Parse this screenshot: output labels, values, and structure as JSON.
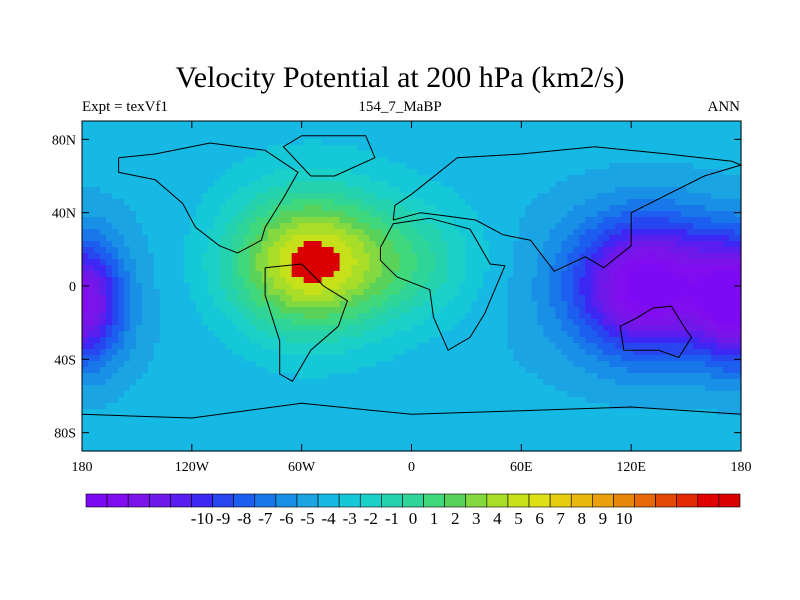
{
  "chart_data": {
    "type": "heatmap",
    "title": "Velocity Potential at 200 hPa (km2/s)",
    "subtitle_left": "Expt = texVf1",
    "subtitle_center": "154_7_MaBP",
    "subtitle_right": "ANN",
    "x_range": [
      -180,
      180
    ],
    "y_range": [
      -90,
      90
    ],
    "x_ticks": [
      {
        "value": -180,
        "label": "180"
      },
      {
        "value": -120,
        "label": "120W"
      },
      {
        "value": -60,
        "label": "60W"
      },
      {
        "value": 0,
        "label": "0"
      },
      {
        "value": 60,
        "label": "60E"
      },
      {
        "value": 120,
        "label": "120E"
      },
      {
        "value": 180,
        "label": "180"
      }
    ],
    "y_ticks": [
      {
        "value": 80,
        "label": "80N"
      },
      {
        "value": 40,
        "label": "40N"
      },
      {
        "value": 0,
        "label": "0"
      },
      {
        "value": -40,
        "label": "40S"
      },
      {
        "value": -80,
        "label": "80S"
      }
    ],
    "levels": [
      -10,
      -9,
      -8,
      -7,
      -6,
      -5,
      -4,
      -3,
      -2,
      -1,
      0,
      1,
      2,
      3,
      4,
      5,
      6,
      7,
      8,
      9,
      10
    ],
    "colorbar_labels": [
      "-10",
      "-9",
      "-8",
      "-7",
      "-6",
      "-5",
      "-4",
      "-3",
      "-2",
      "-1",
      "0",
      "1",
      "2",
      "3",
      "4",
      "5",
      "6",
      "7",
      "8",
      "9",
      "10"
    ],
    "field_centers": [
      {
        "name": "max",
        "lon": -55,
        "lat": 15,
        "value": 10.5
      },
      {
        "name": "min-pacific",
        "lon": 130,
        "lat": 0,
        "value": -10.5
      },
      {
        "name": "min-west-edge",
        "lon": -180,
        "lat": -10,
        "value": -9
      }
    ],
    "colors": [
      "#7d0af5",
      "#820cf0",
      "#7a14ea",
      "#6e18ea",
      "#5a1ef0",
      "#3c28f2",
      "#2846f0",
      "#1c5ef0",
      "#1878ea",
      "#1890e6",
      "#1aa4e4",
      "#16b8e4",
      "#14c8d8",
      "#1ad0c8",
      "#24d2b0",
      "#2ed498",
      "#40d87c",
      "#5ad25a",
      "#84d840",
      "#a8de28",
      "#c6e01a",
      "#dce014",
      "#e8cc10",
      "#e8b80e",
      "#e8a00c",
      "#e6860a",
      "#e66808",
      "#e44a06",
      "#e22a04",
      "#e00000",
      "#d80000"
    ]
  }
}
